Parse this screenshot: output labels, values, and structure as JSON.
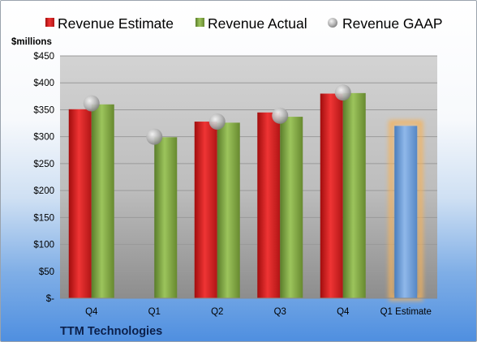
{
  "company_label": "TTM Technologies",
  "chart_data": {
    "type": "bar",
    "y_unit_label": "$millions",
    "categories": [
      "Q4",
      "Q1",
      "Q2",
      "Q3",
      "Q4",
      "Q1 Estimate"
    ],
    "ylim": [
      0,
      450
    ],
    "y_ticks": [
      {
        "value": 0,
        "label": "$-"
      },
      {
        "value": 50,
        "label": "$50"
      },
      {
        "value": 100,
        "label": "$100"
      },
      {
        "value": 150,
        "label": "$150"
      },
      {
        "value": 200,
        "label": "$200"
      },
      {
        "value": 250,
        "label": "$250"
      },
      {
        "value": 300,
        "label": "$300"
      },
      {
        "value": 350,
        "label": "$350"
      },
      {
        "value": 400,
        "label": "$400"
      },
      {
        "value": 450,
        "label": "$450"
      }
    ],
    "grid": true,
    "legend_position": "top",
    "series": [
      {
        "name": "Revenue Estimate",
        "kind": "bar",
        "color": "#d81e1e",
        "values": [
          351,
          null,
          328,
          345,
          380,
          null
        ]
      },
      {
        "name": "Revenue Actual",
        "kind": "bar",
        "color": "#7aa33e",
        "values": [
          360,
          299,
          326,
          337,
          381,
          null
        ]
      },
      {
        "name": "Revenue GAAP",
        "kind": "marker",
        "color": "#b8b8b8",
        "values": [
          362,
          300,
          328,
          339,
          382,
          null
        ]
      },
      {
        "name": "Q1 Estimate",
        "kind": "bar",
        "color": "#6f9fd8",
        "highlight": "#f5b25a",
        "values": [
          null,
          null,
          null,
          null,
          null,
          320
        ]
      }
    ]
  }
}
